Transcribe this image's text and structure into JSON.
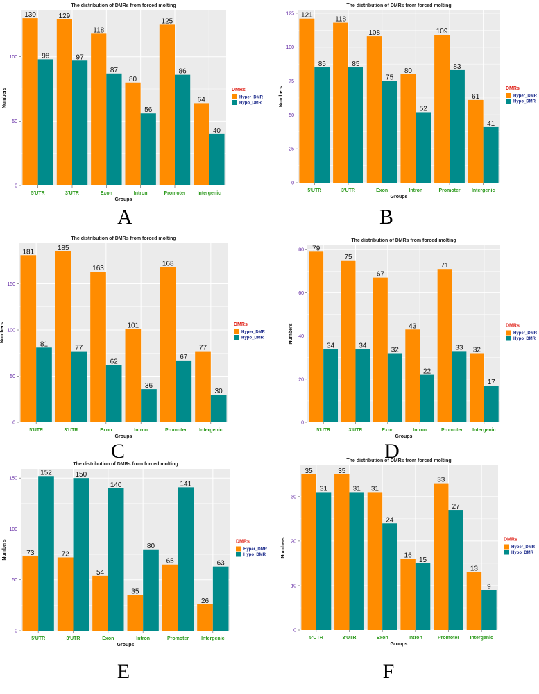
{
  "colors": {
    "hyper": "#ff8c00",
    "hypo": "#008b8b",
    "panel_bg": "#ebebeb",
    "grid": "#ffffff"
  },
  "chart_data": [
    {
      "type": "bar",
      "panel_label": "A",
      "title": "The distribution of DMRs from forced molting",
      "xlabel": "Groups",
      "ylabel": "Numbers",
      "categories": [
        "5'UTR",
        "3'UTR",
        "Exon",
        "Intron",
        "Promoter",
        "Intergenic"
      ],
      "series": [
        {
          "name": "Hyper_DMR",
          "values": [
            130,
            129,
            118,
            80,
            125,
            64
          ]
        },
        {
          "name": "Hypo_DMR",
          "values": [
            98,
            97,
            87,
            56,
            86,
            40
          ]
        }
      ],
      "yticks": [
        0,
        50,
        100
      ],
      "ytick_labels": [
        "0",
        "50",
        "100"
      ],
      "ylim": [
        0,
        136
      ],
      "legend_title": "DMRs",
      "legend_position": "right"
    },
    {
      "type": "bar",
      "panel_label": "B",
      "title": "The distribution of DMRs from forced molting",
      "xlabel": "Groups",
      "ylabel": "Numbers",
      "categories": [
        "5'UTR",
        "3'UTR",
        "Exon",
        "Intron",
        "Promoter",
        "Intergenic"
      ],
      "series": [
        {
          "name": "Hyper_DMR",
          "values": [
            121,
            118,
            108,
            80,
            109,
            61
          ]
        },
        {
          "name": "Hypo_DMR",
          "values": [
            85,
            85,
            75,
            52,
            83,
            41
          ]
        }
      ],
      "yticks": [
        0,
        25,
        50,
        75,
        100,
        125
      ],
      "ytick_labels": [
        "0",
        "25",
        "50",
        "75",
        "100",
        "125"
      ],
      "ylim": [
        0,
        127
      ],
      "legend_title": "DMRs",
      "legend_position": "right"
    },
    {
      "type": "bar",
      "panel_label": "C",
      "title": "The distribution of DMRs from forced molting",
      "xlabel": "Groups",
      "ylabel": "Numbers",
      "categories": [
        "5'UTR",
        "3'UTR",
        "Exon",
        "Intron",
        "Promoter",
        "Intergenic"
      ],
      "series": [
        {
          "name": "Hyper_DMR",
          "values": [
            181,
            185,
            163,
            101,
            168,
            77
          ]
        },
        {
          "name": "Hypo_DMR",
          "values": [
            81,
            77,
            62,
            36,
            67,
            30
          ]
        }
      ],
      "yticks": [
        0,
        50,
        100,
        150
      ],
      "ytick_labels": [
        "0",
        "50",
        "100",
        "150"
      ],
      "ylim": [
        0,
        194
      ],
      "legend_title": "DMRs",
      "legend_position": "right"
    },
    {
      "type": "bar",
      "panel_label": "D",
      "title": "The distribution of DMRs from forced molting",
      "xlabel": "Groups",
      "ylabel": "Numbers",
      "categories": [
        "5'UTR",
        "3'UTR",
        "Exon",
        "Intron",
        "Promoter",
        "Intergenic"
      ],
      "series": [
        {
          "name": "Hyper_DMR",
          "values": [
            79,
            75,
            67,
            43,
            71,
            32
          ]
        },
        {
          "name": "Hypo_DMR",
          "values": [
            34,
            34,
            32,
            22,
            33,
            17
          ]
        }
      ],
      "yticks": [
        0,
        20,
        40,
        60,
        80
      ],
      "ytick_labels": [
        "0",
        "20",
        "40",
        "60",
        "80"
      ],
      "ylim": [
        0,
        82
      ],
      "legend_title": "DMRs",
      "legend_position": "right"
    },
    {
      "type": "bar",
      "panel_label": "E",
      "title": "The distribution of DMRs from forced molting",
      "xlabel": "Groups",
      "ylabel": "Numbers",
      "categories": [
        "5'UTR",
        "3'UTR",
        "Exon",
        "Intron",
        "Promoter",
        "Intergenic"
      ],
      "series": [
        {
          "name": "Hyper_DMR",
          "values": [
            73,
            72,
            54,
            35,
            65,
            26
          ]
        },
        {
          "name": "Hypo_DMR",
          "values": [
            152,
            150,
            140,
            80,
            141,
            63
          ]
        }
      ],
      "yticks": [
        0,
        50,
        100,
        150
      ],
      "ytick_labels": [
        "0",
        "50",
        "100",
        "150"
      ],
      "ylim": [
        0,
        159
      ],
      "legend_title": "DMRs",
      "legend_position": "right"
    },
    {
      "type": "bar",
      "panel_label": "F",
      "title": "The distribution of DMRs from forced molting",
      "xlabel": "Groups",
      "ylabel": "Numbers",
      "categories": [
        "5'UTR",
        "3'UTR",
        "Exon",
        "Intron",
        "Promoter",
        "Intergenic"
      ],
      "series": [
        {
          "name": "Hyper_DMR",
          "values": [
            35,
            35,
            31,
            16,
            33,
            13
          ]
        },
        {
          "name": "Hypo_DMR",
          "values": [
            31,
            31,
            24,
            15,
            27,
            9
          ]
        }
      ],
      "yticks": [
        0,
        10,
        20,
        30
      ],
      "ytick_labels": [
        "0",
        "10",
        "20",
        "30"
      ],
      "ylim": [
        0,
        37
      ],
      "legend_title": "DMRs",
      "legend_position": "right"
    }
  ]
}
